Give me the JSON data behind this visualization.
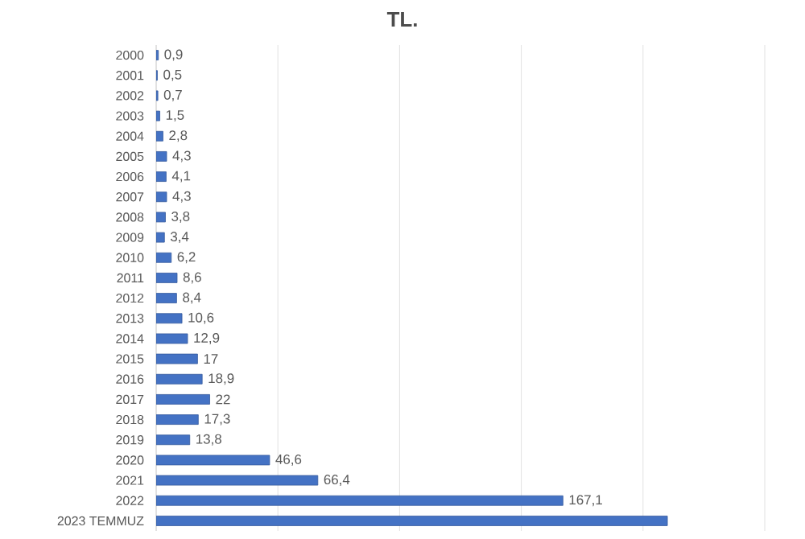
{
  "chart_data": {
    "type": "bar",
    "orientation": "horizontal",
    "title": "TL.",
    "categories": [
      "2000",
      "2001",
      "2002",
      "2003",
      "2004",
      "2005",
      "2006",
      "2007",
      "2008",
      "2009",
      "2010",
      "2011",
      "2012",
      "2013",
      "2014",
      "2015",
      "2016",
      "2017",
      "2018",
      "2019",
      "2020",
      "2021",
      "2022",
      "2023 TEMMUZ"
    ],
    "values": [
      0.9,
      0.5,
      0.7,
      1.5,
      2.8,
      4.3,
      4.1,
      4.3,
      3.8,
      3.4,
      6.2,
      8.6,
      8.4,
      10.6,
      12.9,
      17,
      18.9,
      22,
      17.3,
      13.8,
      46.6,
      66.4,
      167.1,
      210
    ],
    "value_labels": [
      "0,9",
      "0,5",
      "0,7",
      "1,5",
      "2,8",
      "4,3",
      "4,1",
      "4,3",
      "3,8",
      "3,4",
      "6,2",
      "8,6",
      "8,4",
      "10,6",
      "12,9",
      "17",
      "18,9",
      "22",
      "17,3",
      "13,8",
      "46,6",
      "66,4",
      "167,1",
      null
    ],
    "color": "#4472c4",
    "xlim": [
      0,
      250
    ],
    "xticks": [
      {
        "value": 0,
        "label": null
      },
      {
        "value": 50,
        "label": null
      },
      {
        "value": 100,
        "label": null
      },
      {
        "value": 150,
        "label": null
      },
      {
        "value": 200,
        "label": null
      },
      {
        "value": 250,
        "label": null
      }
    ],
    "grid": "x",
    "tick_labels": "y"
  }
}
